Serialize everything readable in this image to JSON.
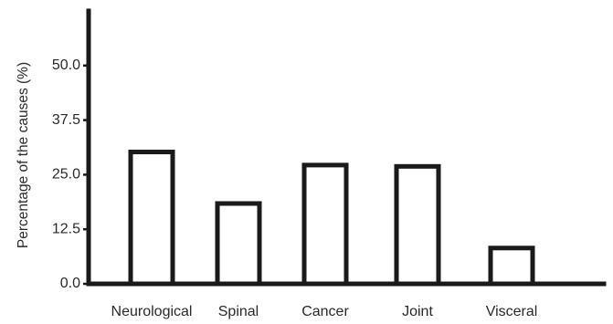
{
  "chart_data": {
    "type": "bar",
    "categories": [
      "Neurological",
      "Spinal",
      "Cancer",
      "Joint",
      "Visceral"
    ],
    "values": [
      30.2,
      18.4,
      27.2,
      26.9,
      8.2
    ],
    "ylabel": "Percentage of the causes (%)",
    "xlabel": "",
    "ylim": [
      0,
      62.5
    ],
    "yticks": [
      "0.0",
      "12.5",
      "25.0",
      "37.5",
      "50.0"
    ],
    "grid": false,
    "bar_fill": "#ffffff",
    "bar_stroke": "#1a1a1a"
  }
}
